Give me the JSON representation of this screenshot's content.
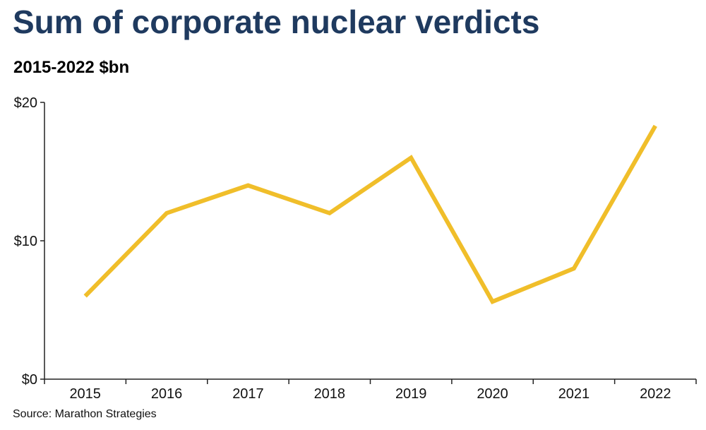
{
  "header": {
    "title": "Sum of corporate nuclear verdicts",
    "subtitle": "2015-2022 $bn"
  },
  "footer": {
    "source": "Source: Marathon Strategies"
  },
  "colors": {
    "line": "#F0BE2A",
    "title": "#1f3a5f",
    "axis": "#222222"
  },
  "chart_data": {
    "type": "line",
    "categories": [
      "2015",
      "2016",
      "2017",
      "2018",
      "2019",
      "2020",
      "2021",
      "2022"
    ],
    "series": [
      {
        "values": [
          6.0,
          12.0,
          14.0,
          12.0,
          16.0,
          5.6,
          8.0,
          18.3
        ]
      }
    ],
    "ylim": [
      0,
      20
    ],
    "yticks": [
      0,
      10,
      20
    ],
    "ytick_labels": [
      "$0",
      "$10",
      "$20"
    ],
    "grid": false,
    "legend": "none"
  }
}
